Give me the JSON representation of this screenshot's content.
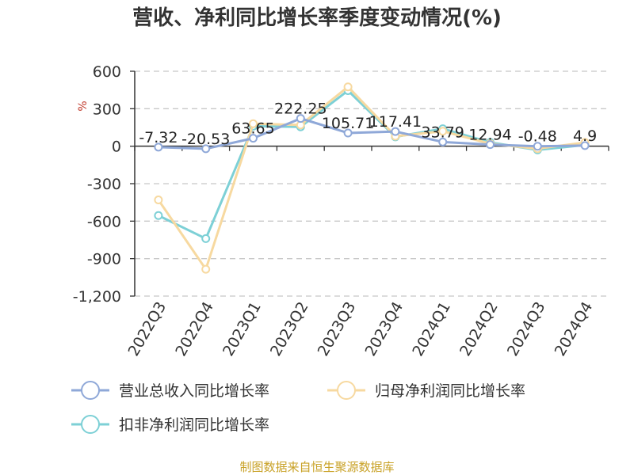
{
  "chart_data": {
    "type": "line",
    "title": "营收、净利同比增长率季度变动情况(%)",
    "ylabel": "%",
    "xlabel": "",
    "categories": [
      "2022Q3",
      "2022Q4",
      "2023Q1",
      "2023Q2",
      "2023Q3",
      "2023Q4",
      "2024Q1",
      "2024Q2",
      "2024Q3",
      "2024Q4"
    ],
    "ylim": [
      -1200,
      600
    ],
    "yticks": [
      600,
      300,
      0,
      -300,
      -600,
      -900,
      -1200
    ],
    "ytick_labels": [
      "600",
      "300",
      "0",
      "-300",
      "-600",
      "-900",
      "-1,200"
    ],
    "grid": true,
    "legend_position": "bottom",
    "series": [
      {
        "name": "营业总收入同比增长率",
        "color": "#8fa8d8",
        "values": [
          -7.32,
          -20.53,
          63.65,
          222.25,
          105.71,
          117.41,
          33.79,
          12.94,
          -0.48,
          4.9
        ],
        "labels": [
          "-7.32",
          "-20.53",
          "63.65",
          "222.25",
          "105.71",
          "117.41",
          "33.79",
          "12.94",
          "-0.48",
          "4.9"
        ]
      },
      {
        "name": "归母净利润同比增长率",
        "color": "#f7d9a0",
        "values": [
          -430,
          -985,
          180,
          170,
          475,
          80,
          120,
          20,
          -20,
          30
        ]
      },
      {
        "name": "扣非净利润同比增长率",
        "color": "#7dd0d6",
        "values": [
          -555,
          -740,
          160,
          155,
          445,
          75,
          140,
          30,
          -30,
          10
        ]
      }
    ]
  },
  "footer": {
    "source": "制图数据来自恒生聚源数据库"
  }
}
